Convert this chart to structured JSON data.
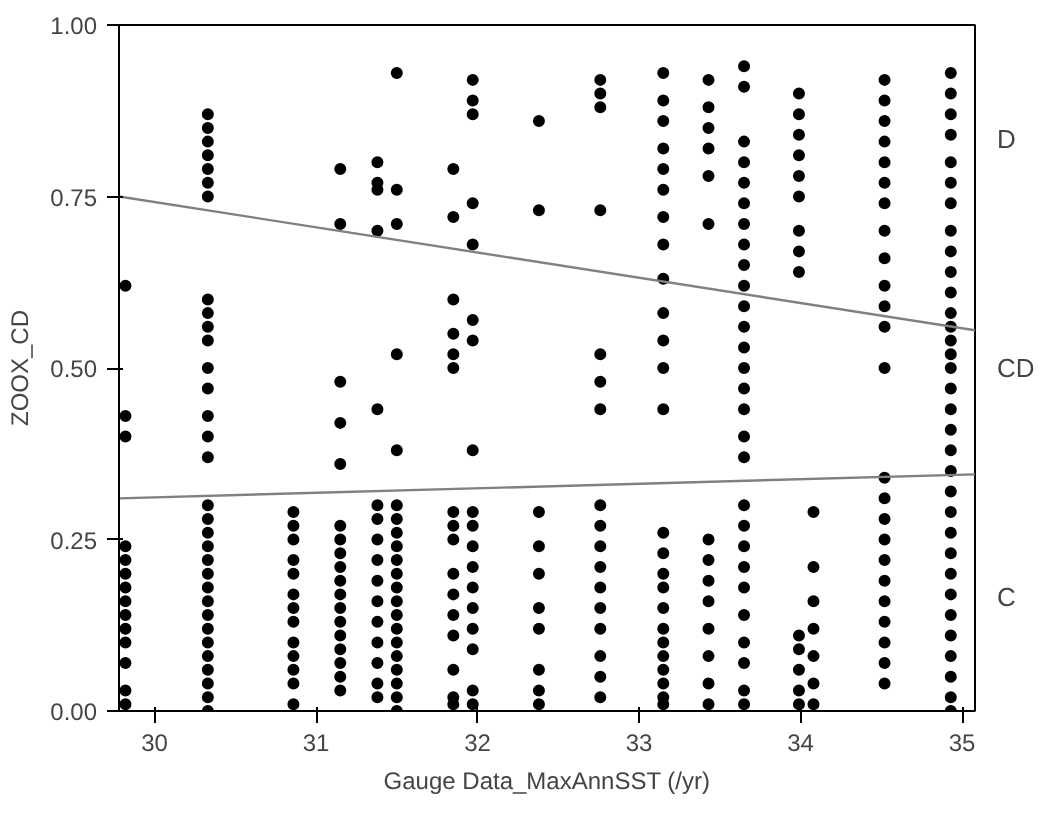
{
  "chart_data": {
    "type": "scatter",
    "xlabel": "Gauge Data_MaxAnnSST (/yr)",
    "ylabel": "ZOOX_CD",
    "xlim": [
      29.78,
      35.08
    ],
    "ylim": [
      0,
      1
    ],
    "xticks": [
      30,
      31,
      32,
      33,
      34,
      35
    ],
    "yticks": [
      {
        "value": 0,
        "label": "0.00"
      },
      {
        "value": 0.25,
        "label": "0.25"
      },
      {
        "value": 0.5,
        "label": "0.50"
      },
      {
        "value": 0.75,
        "label": "0.75"
      },
      {
        "value": 1,
        "label": "1.00"
      }
    ],
    "annotations": [
      "D",
      "CD",
      "C"
    ],
    "grid": false,
    "marker": "circle",
    "series": [
      {
        "color": "#000000",
        "x": [
          29.82,
          29.82,
          29.82,
          29.82,
          29.82,
          29.82,
          29.82,
          29.82,
          29.82,
          29.82,
          29.82,
          29.82,
          29.82,
          29.82
        ],
        "values": [
          0.62,
          0.43,
          0.4,
          0.24,
          0.22,
          0.2,
          0.18,
          0.16,
          0.14,
          0.12,
          0.1,
          0.07,
          0.03,
          0.01
        ]
      },
      {
        "color": "#000000",
        "x": [
          30.33,
          30.33,
          30.33,
          30.33,
          30.33,
          30.33,
          30.33,
          30.33,
          30.33,
          30.33,
          30.33,
          30.33,
          30.33,
          30.33,
          30.33,
          30.33,
          30.33,
          30.33,
          30.33,
          30.33,
          30.33,
          30.33,
          30.33,
          30.33,
          30.33,
          30.33,
          30.33,
          30.33,
          30.33,
          30.33,
          30.33,
          30.33
        ],
        "values": [
          0.87,
          0.85,
          0.83,
          0.81,
          0.79,
          0.77,
          0.75,
          0.6,
          0.58,
          0.56,
          0.54,
          0.5,
          0.47,
          0.43,
          0.4,
          0.37,
          0.3,
          0.28,
          0.26,
          0.24,
          0.22,
          0.2,
          0.18,
          0.16,
          0.14,
          0.12,
          0.1,
          0.08,
          0.06,
          0.04,
          0.02,
          0.0
        ]
      },
      {
        "color": "#000000",
        "x": [
          30.86,
          30.86,
          30.86,
          30.86,
          30.86,
          30.86,
          30.86,
          30.86,
          30.86,
          30.86,
          30.86,
          30.86,
          30.86
        ],
        "values": [
          0.29,
          0.27,
          0.25,
          0.22,
          0.2,
          0.17,
          0.15,
          0.13,
          0.1,
          0.08,
          0.06,
          0.04,
          0.01
        ]
      },
      {
        "color": "#000000",
        "x": [
          31.15,
          31.15,
          31.15,
          31.15,
          31.15,
          31.15,
          31.15,
          31.15,
          31.15,
          31.15,
          31.15,
          31.15,
          31.15,
          31.15,
          31.15,
          31.15,
          31.15,
          31.15
        ],
        "values": [
          0.79,
          0.71,
          0.48,
          0.42,
          0.36,
          0.27,
          0.25,
          0.23,
          0.21,
          0.19,
          0.17,
          0.15,
          0.13,
          0.11,
          0.09,
          0.07,
          0.05,
          0.03
        ]
      },
      {
        "color": "#000000",
        "x": [
          31.38,
          31.38,
          31.38,
          31.38,
          31.38,
          31.38,
          31.38,
          31.38,
          31.38,
          31.38,
          31.38,
          31.38,
          31.38,
          31.38,
          31.38,
          31.38
        ],
        "values": [
          0.8,
          0.77,
          0.76,
          0.7,
          0.44,
          0.3,
          0.28,
          0.25,
          0.22,
          0.19,
          0.16,
          0.13,
          0.1,
          0.07,
          0.04,
          0.02
        ]
      },
      {
        "color": "#000000",
        "x": [
          31.5,
          31.5,
          31.5,
          31.5,
          31.5,
          31.5,
          31.5,
          31.5,
          31.5,
          31.5,
          31.5,
          31.5,
          31.5,
          31.5,
          31.5,
          31.5,
          31.5,
          31.5,
          31.5,
          31.5,
          31.5
        ],
        "values": [
          0.93,
          0.76,
          0.71,
          0.52,
          0.38,
          0.3,
          0.28,
          0.26,
          0.24,
          0.22,
          0.2,
          0.18,
          0.16,
          0.14,
          0.12,
          0.1,
          0.08,
          0.06,
          0.04,
          0.02,
          0.0
        ]
      },
      {
        "color": "#000000",
        "x": [
          31.85,
          31.85,
          31.85,
          31.85,
          31.85,
          31.85,
          31.85,
          31.85,
          31.85,
          31.85,
          31.85,
          31.85,
          31.85,
          31.85,
          31.85,
          31.85
        ],
        "values": [
          0.79,
          0.72,
          0.6,
          0.55,
          0.52,
          0.5,
          0.29,
          0.27,
          0.25,
          0.2,
          0.17,
          0.14,
          0.11,
          0.06,
          0.02,
          0.01
        ]
      },
      {
        "color": "#000000",
        "x": [
          31.97,
          31.97,
          31.97,
          31.97,
          31.97,
          31.97,
          31.97,
          31.97,
          31.97,
          31.97,
          31.97,
          31.97,
          31.97,
          31.97,
          31.97,
          31.97,
          31.97,
          31.97
        ],
        "values": [
          0.92,
          0.89,
          0.87,
          0.74,
          0.68,
          0.57,
          0.54,
          0.38,
          0.29,
          0.27,
          0.24,
          0.21,
          0.18,
          0.15,
          0.12,
          0.09,
          0.03,
          0.01
        ]
      },
      {
        "color": "#000000",
        "x": [
          32.38,
          32.38,
          32.38,
          32.38,
          32.38,
          32.38,
          32.38,
          32.38,
          32.38,
          32.38
        ],
        "values": [
          0.86,
          0.73,
          0.29,
          0.24,
          0.2,
          0.15,
          0.12,
          0.06,
          0.03,
          0.01
        ]
      },
      {
        "color": "#000000",
        "x": [
          32.76,
          32.76,
          32.76,
          32.76,
          32.76,
          32.76,
          32.76,
          32.76,
          32.76,
          32.76,
          32.76,
          32.76,
          32.76,
          32.76,
          32.76,
          32.76,
          32.76
        ],
        "values": [
          0.92,
          0.9,
          0.88,
          0.73,
          0.52,
          0.48,
          0.44,
          0.3,
          0.27,
          0.24,
          0.21,
          0.18,
          0.15,
          0.12,
          0.08,
          0.05,
          0.02
        ]
      },
      {
        "color": "#000000",
        "x": [
          33.15,
          33.15,
          33.15,
          33.15,
          33.15,
          33.15,
          33.15,
          33.15,
          33.15,
          33.15,
          33.15,
          33.15,
          33.15,
          33.15,
          33.15,
          33.15,
          33.15,
          33.15,
          33.15,
          33.15,
          33.15,
          33.15,
          33.15,
          33.15,
          33.15
        ],
        "values": [
          0.93,
          0.89,
          0.86,
          0.82,
          0.79,
          0.76,
          0.72,
          0.68,
          0.63,
          0.58,
          0.54,
          0.5,
          0.44,
          0.26,
          0.23,
          0.2,
          0.18,
          0.15,
          0.12,
          0.1,
          0.08,
          0.06,
          0.04,
          0.02,
          0.01
        ]
      },
      {
        "color": "#000000",
        "x": [
          33.43,
          33.43,
          33.43,
          33.43,
          33.43,
          33.43,
          33.43,
          33.43,
          33.43,
          33.43,
          33.43,
          33.43,
          33.43,
          33.43
        ],
        "values": [
          0.92,
          0.88,
          0.85,
          0.82,
          0.78,
          0.71,
          0.25,
          0.22,
          0.19,
          0.16,
          0.12,
          0.08,
          0.04,
          0.01
        ]
      },
      {
        "color": "#000000",
        "x": [
          33.65,
          33.65,
          33.65,
          33.65,
          33.65,
          33.65,
          33.65,
          33.65,
          33.65,
          33.65,
          33.65,
          33.65,
          33.65,
          33.65,
          33.65,
          33.65,
          33.65,
          33.65,
          33.65,
          33.65,
          33.65,
          33.65,
          33.65,
          33.65,
          33.65,
          33.65,
          33.65,
          33.65
        ],
        "values": [
          0.94,
          0.91,
          0.83,
          0.8,
          0.77,
          0.74,
          0.71,
          0.68,
          0.65,
          0.62,
          0.59,
          0.56,
          0.53,
          0.5,
          0.47,
          0.44,
          0.4,
          0.37,
          0.3,
          0.27,
          0.24,
          0.21,
          0.18,
          0.14,
          0.1,
          0.07,
          0.03,
          0.01
        ]
      },
      {
        "color": "#000000",
        "x": [
          33.99,
          33.99,
          33.99,
          33.99,
          33.99,
          33.99,
          33.99,
          33.99,
          33.99,
          33.99,
          33.99,
          33.99,
          33.99,
          33.99
        ],
        "values": [
          0.9,
          0.87,
          0.84,
          0.81,
          0.78,
          0.75,
          0.7,
          0.67,
          0.64,
          0.11,
          0.09,
          0.06,
          0.03,
          0.01
        ]
      },
      {
        "color": "#000000",
        "x": [
          34.08,
          34.08,
          34.08,
          34.08,
          34.08,
          34.08,
          34.08
        ],
        "values": [
          0.29,
          0.21,
          0.16,
          0.12,
          0.08,
          0.04,
          0.01
        ]
      },
      {
        "color": "#000000",
        "x": [
          34.52,
          34.52,
          34.52,
          34.52,
          34.52,
          34.52,
          34.52,
          34.52,
          34.52,
          34.52,
          34.52,
          34.52,
          34.52,
          34.52,
          34.52,
          34.52,
          34.52,
          34.52,
          34.52,
          34.52,
          34.52,
          34.52,
          34.52,
          34.52
        ],
        "values": [
          0.92,
          0.89,
          0.86,
          0.83,
          0.8,
          0.77,
          0.74,
          0.7,
          0.66,
          0.62,
          0.59,
          0.56,
          0.5,
          0.34,
          0.31,
          0.28,
          0.25,
          0.22,
          0.19,
          0.16,
          0.13,
          0.1,
          0.07,
          0.04
        ]
      },
      {
        "color": "#000000",
        "x": [
          34.93,
          34.93,
          34.93,
          34.93,
          34.93,
          34.93,
          34.93,
          34.93,
          34.93,
          34.93,
          34.93,
          34.93,
          34.93,
          34.93,
          34.93,
          34.93,
          34.93,
          34.93,
          34.93,
          34.93,
          34.93,
          34.93,
          34.93,
          34.93,
          34.93,
          34.93,
          34.93,
          34.93,
          34.93,
          34.93,
          34.93,
          34.93,
          34.93
        ],
        "values": [
          0.93,
          0.9,
          0.87,
          0.84,
          0.8,
          0.77,
          0.74,
          0.7,
          0.67,
          0.64,
          0.61,
          0.58,
          0.56,
          0.54,
          0.52,
          0.5,
          0.47,
          0.44,
          0.41,
          0.38,
          0.35,
          0.32,
          0.29,
          0.26,
          0.23,
          0.2,
          0.17,
          0.14,
          0.11,
          0.08,
          0.05,
          0.02,
          0.0
        ]
      },
      {
        "type": "line",
        "marker": "none",
        "color": "#808080",
        "x": [
          29.78,
          35.08
        ],
        "values": [
          0.75,
          0.555
        ]
      },
      {
        "type": "line",
        "marker": "none",
        "color": "#808080",
        "x": [
          29.78,
          35.08
        ],
        "values": [
          0.31,
          0.345
        ]
      }
    ]
  }
}
